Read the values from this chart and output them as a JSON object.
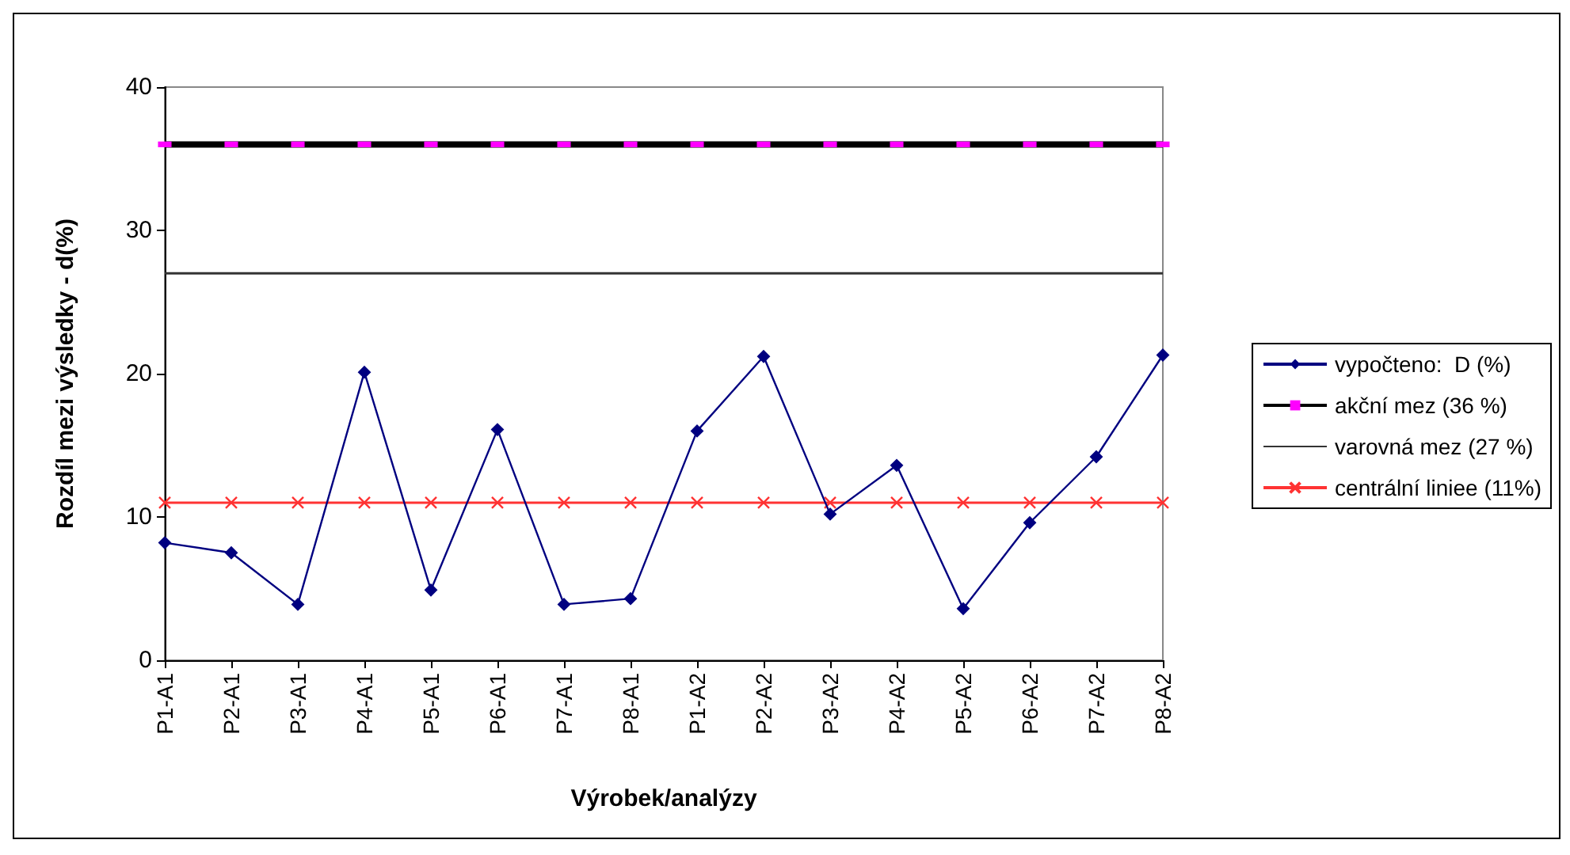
{
  "chart_data": {
    "type": "line",
    "xlabel": "Výrobek/analýzy",
    "ylabel": "Rozdíl mezi výsledky - d(%)",
    "categories": [
      "P1-A1",
      "P2-A1",
      "P3-A1",
      "P4-A1",
      "P5-A1",
      "P6-A1",
      "P7-A1",
      "P8-A1",
      "P1-A2",
      "P2-A2",
      "P3-A2",
      "P4-A2",
      "P5-A2",
      "P6-A2",
      "P7-A2",
      "P8-A2"
    ],
    "series": [
      {
        "name": "vypočteno:  D (%)",
        "color": "#000080",
        "marker": "diamond",
        "values": [
          8.2,
          7.5,
          3.9,
          20.1,
          4.9,
          16.1,
          3.9,
          4.3,
          16.0,
          21.2,
          10.2,
          13.6,
          3.6,
          9.6,
          14.2,
          21.3
        ]
      },
      {
        "name": "akční mez (36 %)",
        "color": "#000000",
        "marker": "square",
        "colors": [
          "#ff00ff",
          "#ff00ff",
          "#ff00ff",
          "#ff00ff",
          "#ff00ff",
          "#ff00ff",
          "#ff00ff",
          "#ff00ff",
          "#ff00ff",
          "#ff00ff",
          "#ff00ff",
          "#ff00ff",
          "#ff00ff",
          "#ff00ff",
          "#ff00ff",
          "#ff00ff"
        ],
        "values": [
          36,
          36,
          36,
          36,
          36,
          36,
          36,
          36,
          36,
          36,
          36,
          36,
          36,
          36,
          36,
          36
        ]
      },
      {
        "name": "varovná mez (27 %)",
        "color": "#333333",
        "marker": "none",
        "values": [
          27,
          27,
          27,
          27,
          27,
          27,
          27,
          27,
          27,
          27,
          27,
          27,
          27,
          27,
          27,
          27
        ]
      },
      {
        "name": "centrální liniee (11%)",
        "color": "#ff3333",
        "marker": "cross",
        "values": [
          11,
          11,
          11,
          11,
          11,
          11,
          11,
          11,
          11,
          11,
          11,
          11,
          11,
          11,
          11,
          11
        ]
      }
    ],
    "ylim": [
      0,
      40
    ],
    "yticks": [
      0,
      10,
      20,
      30,
      40
    ],
    "grid": false,
    "legend": "right"
  }
}
